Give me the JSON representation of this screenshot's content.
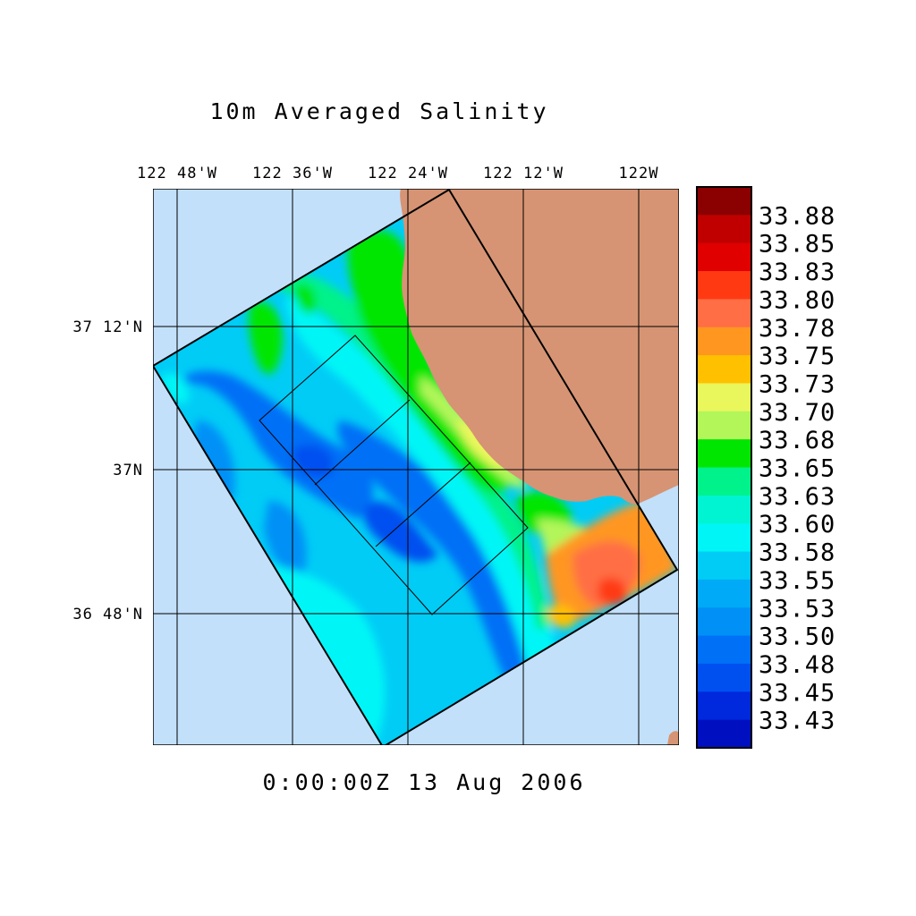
{
  "title": "10m Averaged Salinity",
  "timestamp": "0:00:00Z  13 Aug 2006",
  "longitude_ticks": [
    "122 48'W",
    "122 36'W",
    "122 24'W",
    "122 12'W",
    "122W"
  ],
  "latitude_ticks": [
    "37 12'N",
    "37N",
    "36 48'N"
  ],
  "colorbar": {
    "labels": [
      "33.88",
      "33.85",
      "33.83",
      "33.80",
      "33.78",
      "33.75",
      "33.73",
      "33.70",
      "33.68",
      "33.65",
      "33.63",
      "33.60",
      "33.58",
      "33.55",
      "33.53",
      "33.50",
      "33.48",
      "33.45",
      "33.43"
    ],
    "colors": [
      "#8b0000",
      "#c00000",
      "#e00000",
      "#ff3a12",
      "#ff6e45",
      "#ff9620",
      "#ffc000",
      "#e9f65c",
      "#b2f65a",
      "#00e600",
      "#00f28a",
      "#00f4d2",
      "#00f6f6",
      "#00ccf6",
      "#00aaf6",
      "#0090f6",
      "#0070f6",
      "#0050f0",
      "#0028dc",
      "#0010c0"
    ]
  },
  "map": {
    "ocean_color": "#c2e0fa",
    "land_color": "#d69474"
  }
}
